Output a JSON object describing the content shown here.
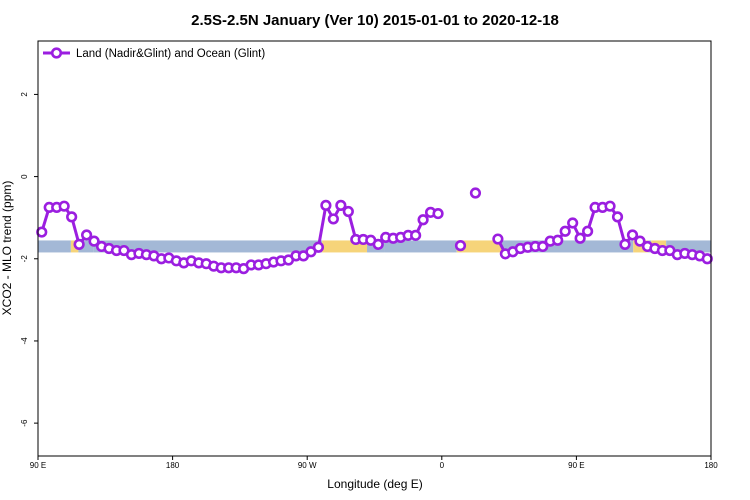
{
  "chart_data": {
    "type": "line",
    "title": "2.5S-2.5N January (Ver 10)   2015-01-01 to 2020-12-18",
    "xlabel": "Longitude (deg E)",
    "ylabel": "XCO2 - MLO trend (ppm)",
    "x_tick_labels": [
      "90 E",
      "180",
      "90 W",
      "0",
      "90 E",
      "180"
    ],
    "x_tick_values": [
      90,
      180,
      270,
      360,
      450,
      540
    ],
    "xlim": [
      90,
      540
    ],
    "y_ticks": [
      2,
      0,
      -2,
      -4,
      -6
    ],
    "ylim": [
      -6.8,
      3.3
    ],
    "grid": false,
    "legend_position": "top-left",
    "colors": {
      "series": "#9b1ee0",
      "band_ocean": "#a3b8d6",
      "band_land": "#f6d47a"
    },
    "series": [
      {
        "name": "Land (Nadir&Glint) and Ocean (Glint)",
        "x": [
          92.5,
          97.5,
          102.5,
          107.5,
          112.5,
          117.5,
          122.5,
          127.5,
          132.5,
          137.5,
          142.5,
          147.5,
          152.5,
          157.5,
          162.5,
          167.5,
          172.5,
          177.5,
          182.5,
          187.5,
          192.5,
          197.5,
          202.5,
          207.5,
          212.5,
          217.5,
          222.5,
          227.5,
          232.5,
          237.5,
          242.5,
          247.5,
          252.5,
          257.5,
          262.5,
          267.5,
          272.5,
          277.5,
          282.5,
          287.5,
          292.5,
          297.5,
          302.5,
          307.5,
          312.5,
          317.5,
          322.5,
          327.5,
          332.5,
          337.5,
          342.5,
          347.5,
          352.5,
          357.5,
          362.5,
          367.5,
          372.5,
          377.5,
          382.5,
          387.5,
          392.5,
          397.5,
          402.5,
          407.5,
          412.5,
          417.5,
          422.5,
          427.5,
          432.5,
          437.5,
          442.5,
          447.5,
          452.5,
          457.5,
          462.5,
          467.5,
          472.5,
          477.5,
          482.5,
          487.5,
          492.5,
          497.5,
          502.5,
          507.5,
          512.5,
          517.5,
          522.5,
          527.5,
          532.5,
          537.5
        ],
        "y": [
          -1.35,
          -0.75,
          -0.75,
          -0.72,
          -0.98,
          -1.65,
          -1.42,
          -1.57,
          -1.7,
          -1.75,
          -1.8,
          -1.8,
          -1.9,
          -1.87,
          -1.9,
          -1.93,
          -2.0,
          -1.98,
          -2.05,
          -2.1,
          -2.05,
          -2.1,
          -2.12,
          -2.18,
          -2.22,
          -2.22,
          -2.22,
          -2.24,
          -2.15,
          -2.15,
          -2.12,
          -2.08,
          -2.05,
          -2.03,
          -1.93,
          -1.93,
          -1.83,
          -1.72,
          -0.7,
          -1.03,
          -0.7,
          -0.85,
          -1.53,
          -1.53,
          -1.55,
          -1.65,
          -1.48,
          -1.5,
          -1.48,
          -1.43,
          -1.43,
          -1.05,
          -0.87,
          -0.9,
          null,
          null,
          -1.68,
          null,
          -0.4,
          null,
          null,
          -1.52,
          -1.88,
          -1.83,
          -1.75,
          -1.72,
          -1.7,
          -1.7,
          -1.57,
          -1.55,
          -1.33,
          -1.13,
          -1.5,
          -1.33,
          -0.75,
          -0.75,
          -0.72,
          -0.98,
          -1.65,
          -1.42,
          -1.57,
          -1.7,
          -1.75,
          -1.8,
          -1.8,
          -1.9,
          -1.87,
          -1.9,
          -1.93,
          -2.0
        ]
      }
    ],
    "reference_band": {
      "y_center": -1.7,
      "segments": [
        {
          "x0": 90,
          "x1": 112,
          "kind": "ocean"
        },
        {
          "x0": 112,
          "x1": 117,
          "kind": "land"
        },
        {
          "x0": 117,
          "x1": 127,
          "kind": "ocean"
        },
        {
          "x0": 127,
          "x1": 280,
          "kind": "ocean"
        },
        {
          "x0": 280,
          "x1": 310,
          "kind": "land"
        },
        {
          "x0": 310,
          "x1": 322,
          "kind": "ocean"
        },
        {
          "x0": 322,
          "x1": 370,
          "kind": "ocean"
        },
        {
          "x0": 370,
          "x1": 400,
          "kind": "land"
        },
        {
          "x0": 400,
          "x1": 488,
          "kind": "ocean"
        },
        {
          "x0": 488,
          "x1": 498,
          "kind": "land"
        },
        {
          "x0": 498,
          "x1": 500,
          "kind": "ocean"
        },
        {
          "x0": 500,
          "x1": 510,
          "kind": "land"
        },
        {
          "x0": 510,
          "x1": 540,
          "kind": "ocean"
        }
      ]
    }
  }
}
